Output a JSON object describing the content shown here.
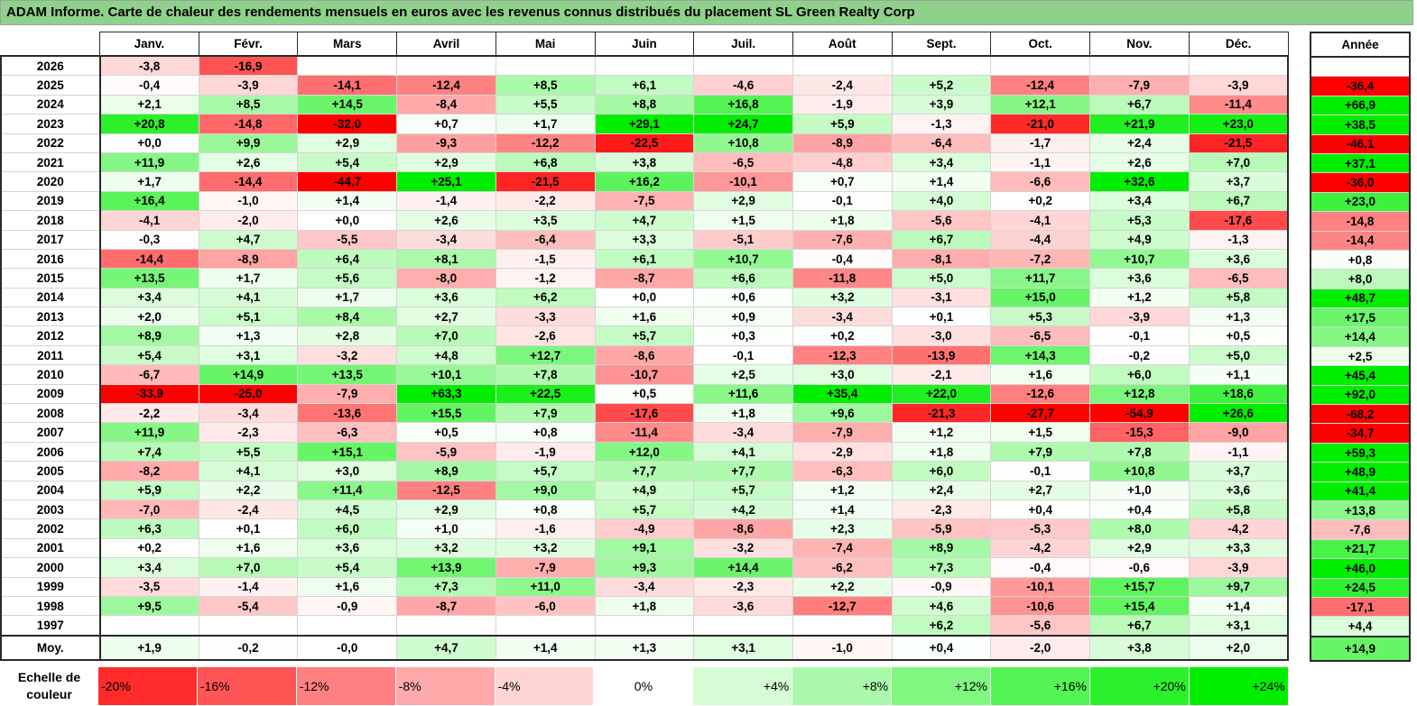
{
  "title": "ADAM Informe. Carte de chaleur des rendements mensuels en euros avec les revenus connus distribués du placement SL Green Realty Corp",
  "chart_data": {
    "type": "heatmap",
    "title": "ADAM Informe. Carte de chaleur des rendements mensuels en euros avec les revenus connus distribués du placement SL Green Realty Corp",
    "months": [
      "Janv.",
      "Févr.",
      "Mars",
      "Avril",
      "Mai",
      "Juin",
      "Juil.",
      "Août",
      "Sept.",
      "Oct.",
      "Nov.",
      "Déc."
    ],
    "annual_header": "Année",
    "rows": [
      {
        "year": "2026",
        "values": [
          "-3,8",
          "-16,9",
          "",
          "",
          "",
          "",
          "",
          "",
          "",
          "",
          "",
          ""
        ],
        "annual": ""
      },
      {
        "year": "2025",
        "values": [
          "-0,4",
          "-3,9",
          "-14,1",
          "-12,4",
          "+8,5",
          "+6,1",
          "-4,6",
          "-2,4",
          "+5,2",
          "-12,4",
          "-7,9",
          "-3,9"
        ],
        "annual": "-36,4"
      },
      {
        "year": "2024",
        "values": [
          "+2,1",
          "+8,5",
          "+14,5",
          "-8,4",
          "+5,5",
          "+8,8",
          "+16,8",
          "-1,9",
          "+3,9",
          "+12,1",
          "+6,7",
          "-11,4"
        ],
        "annual": "+66,9"
      },
      {
        "year": "2023",
        "values": [
          "+20,8",
          "-14,8",
          "-32,0",
          "+0,7",
          "+1,7",
          "+29,1",
          "+24,7",
          "+5,9",
          "-1,3",
          "-21,0",
          "+21,9",
          "+23,0"
        ],
        "annual": "+38,5"
      },
      {
        "year": "2022",
        "values": [
          "+0,0",
          "+9,9",
          "+2,9",
          "-9,3",
          "-12,2",
          "-22,5",
          "+10,8",
          "-8,9",
          "-6,4",
          "-1,7",
          "+2,4",
          "-21,5"
        ],
        "annual": "-46,1"
      },
      {
        "year": "2021",
        "values": [
          "+11,9",
          "+2,6",
          "+5,4",
          "+2,9",
          "+6,8",
          "+3,8",
          "-6,5",
          "-4,8",
          "+3,4",
          "-1,1",
          "+2,6",
          "+7,0"
        ],
        "annual": "+37,1"
      },
      {
        "year": "2020",
        "values": [
          "+1,7",
          "-14,4",
          "-44,7",
          "+25,1",
          "-21,5",
          "+16,2",
          "-10,1",
          "+0,7",
          "+1,4",
          "-6,6",
          "+32,6",
          "+3,7"
        ],
        "annual": "-36,0"
      },
      {
        "year": "2019",
        "values": [
          "+16,4",
          "-1,0",
          "+1,4",
          "-1,4",
          "-2,2",
          "-7,5",
          "+2,9",
          "-0,1",
          "+4,0",
          "+0,2",
          "+3,4",
          "+6,7"
        ],
        "annual": "+23,0"
      },
      {
        "year": "2018",
        "values": [
          "-4,1",
          "-2,0",
          "+0,0",
          "+2,6",
          "+3,5",
          "+4,7",
          "+1,5",
          "+1,8",
          "-5,6",
          "-4,1",
          "+5,3",
          "-17,6"
        ],
        "annual": "-14,8"
      },
      {
        "year": "2017",
        "values": [
          "-0,3",
          "+4,7",
          "-5,5",
          "-3,4",
          "-6,4",
          "+3,3",
          "-5,1",
          "-7,6",
          "+6,7",
          "-4,4",
          "+4,9",
          "-1,3"
        ],
        "annual": "-14,4"
      },
      {
        "year": "2016",
        "values": [
          "-14,4",
          "-8,9",
          "+6,4",
          "+8,1",
          "-1,5",
          "+6,1",
          "+10,7",
          "-0,4",
          "-8,1",
          "-7,2",
          "+10,7",
          "+3,6"
        ],
        "annual": "+0,8"
      },
      {
        "year": "2015",
        "values": [
          "+13,5",
          "+1,7",
          "+5,6",
          "-8,0",
          "-1,2",
          "-8,7",
          "+6,6",
          "-11,8",
          "+5,0",
          "+11,7",
          "+3,6",
          "-6,5"
        ],
        "annual": "+8,0"
      },
      {
        "year": "2014",
        "values": [
          "+3,4",
          "+4,1",
          "+1,7",
          "+3,6",
          "+6,2",
          "+0,0",
          "+0,6",
          "+3,2",
          "-3,1",
          "+15,0",
          "+1,2",
          "+5,8"
        ],
        "annual": "+48,7"
      },
      {
        "year": "2013",
        "values": [
          "+2,0",
          "+5,1",
          "+8,4",
          "+2,7",
          "-3,3",
          "+1,6",
          "+0,9",
          "-3,4",
          "+0,1",
          "+5,3",
          "-3,9",
          "+1,3"
        ],
        "annual": "+17,5"
      },
      {
        "year": "2012",
        "values": [
          "+8,9",
          "+1,3",
          "+2,8",
          "+7,0",
          "-2,6",
          "+5,7",
          "+0,3",
          "+0,2",
          "-3,0",
          "-6,5",
          "-0,1",
          "+0,5"
        ],
        "annual": "+14,4"
      },
      {
        "year": "2011",
        "values": [
          "+5,4",
          "+3,1",
          "-3,2",
          "+4,8",
          "+12,7",
          "-8,6",
          "-0,1",
          "-12,3",
          "-13,9",
          "+14,3",
          "-0,2",
          "+5,0"
        ],
        "annual": "+2,5"
      },
      {
        "year": "2010",
        "values": [
          "-6,7",
          "+14,9",
          "+13,5",
          "+10,1",
          "+7,8",
          "-10,7",
          "+2,5",
          "+3,0",
          "-2,1",
          "+1,6",
          "+6,0",
          "+1,1"
        ],
        "annual": "+45,4"
      },
      {
        "year": "2009",
        "values": [
          "-33,9",
          "-25,0",
          "-7,9",
          "+63,3",
          "+22,5",
          "+0,5",
          "+11,6",
          "+35,4",
          "+22,0",
          "-12,6",
          "+12,8",
          "+18,6"
        ],
        "annual": "+92,0"
      },
      {
        "year": "2008",
        "values": [
          "-2,2",
          "-3,4",
          "-13,6",
          "+15,5",
          "+7,9",
          "-17,6",
          "+1,8",
          "+9,6",
          "-21,3",
          "-27,7",
          "-54,9",
          "+26,6"
        ],
        "annual": "-68,2"
      },
      {
        "year": "2007",
        "values": [
          "+11,9",
          "-2,3",
          "-6,3",
          "+0,5",
          "+0,8",
          "-11,4",
          "-3,4",
          "-7,9",
          "+1,2",
          "+1,5",
          "-15,3",
          "-9,0"
        ],
        "annual": "-34,7"
      },
      {
        "year": "2006",
        "values": [
          "+7,4",
          "+5,5",
          "+15,1",
          "-5,9",
          "-1,9",
          "+12,0",
          "+4,1",
          "-2,9",
          "+1,8",
          "+7,9",
          "+7,8",
          "-1,1"
        ],
        "annual": "+59,3"
      },
      {
        "year": "2005",
        "values": [
          "-8,2",
          "+4,1",
          "+3,0",
          "+8,9",
          "+5,7",
          "+7,7",
          "+7,7",
          "-6,3",
          "+6,0",
          "-0,1",
          "+10,8",
          "+3,7"
        ],
        "annual": "+48,9"
      },
      {
        "year": "2004",
        "values": [
          "+5,9",
          "+2,2",
          "+11,4",
          "-12,5",
          "+9,0",
          "+4,9",
          "+5,7",
          "+1,2",
          "+2,4",
          "+2,7",
          "+1,0",
          "+3,6"
        ],
        "annual": "+41,4"
      },
      {
        "year": "2003",
        "values": [
          "-7,0",
          "-2,4",
          "+4,5",
          "+2,9",
          "+0,8",
          "+5,7",
          "+4,2",
          "+1,4",
          "-2,3",
          "+0,4",
          "+0,4",
          "+5,8"
        ],
        "annual": "+13,8"
      },
      {
        "year": "2002",
        "values": [
          "+6,3",
          "+0,1",
          "+6,0",
          "+1,0",
          "-1,6",
          "-4,9",
          "-8,6",
          "+2,3",
          "-5,9",
          "-5,3",
          "+8,0",
          "-4,2"
        ],
        "annual": "-7,6"
      },
      {
        "year": "2001",
        "values": [
          "+0,2",
          "+1,6",
          "+3,6",
          "+3,2",
          "+3,2",
          "+9,1",
          "-3,2",
          "-7,4",
          "+8,9",
          "-4,2",
          "+2,9",
          "+3,3"
        ],
        "annual": "+21,7"
      },
      {
        "year": "2000",
        "values": [
          "+3,4",
          "+7,0",
          "+5,4",
          "+13,9",
          "-7,9",
          "+9,3",
          "+14,4",
          "-6,2",
          "+7,3",
          "-0,4",
          "-0,6",
          "-3,9"
        ],
        "annual": "+46,0"
      },
      {
        "year": "1999",
        "values": [
          "-3,5",
          "-1,4",
          "+1,6",
          "+7,3",
          "+11,0",
          "-3,4",
          "-2,3",
          "+2,2",
          "-0,9",
          "-10,1",
          "+15,7",
          "+9,7"
        ],
        "annual": "+24,5"
      },
      {
        "year": "1998",
        "values": [
          "+9,5",
          "-5,4",
          "-0,9",
          "-8,7",
          "-6,0",
          "+1,8",
          "-3,6",
          "-12,7",
          "+4,6",
          "-10,6",
          "+15,4",
          "+1,4"
        ],
        "annual": "-17,1"
      },
      {
        "year": "1997",
        "values": [
          "",
          "",
          "",
          "",
          "",
          "",
          "",
          "",
          "+6,2",
          "-5,6",
          "+6,7",
          "+3,1"
        ],
        "annual": "+4,4"
      }
    ],
    "average": {
      "label": "Moy.",
      "values": [
        "+1,9",
        "-0,2",
        "-0,0",
        "+4,7",
        "+1,4",
        "+1,3",
        "+3,1",
        "-1,0",
        "+0,4",
        "-2,0",
        "+3,8",
        "+2,0"
      ],
      "annual": "+14,9"
    },
    "scale": {
      "label": "Echelle de couleur",
      "steps": [
        "-20%",
        "-16%",
        "-12%",
        "-8%",
        "-4%",
        "0%",
        "+4%",
        "+8%",
        "+12%",
        "+16%",
        "+20%",
        "+24%"
      ]
    },
    "colors": {
      "negative": "#ff0000",
      "positive": "#00ee00",
      "neutral": "#ffffff",
      "title_bg": "#8fd18b"
    }
  }
}
